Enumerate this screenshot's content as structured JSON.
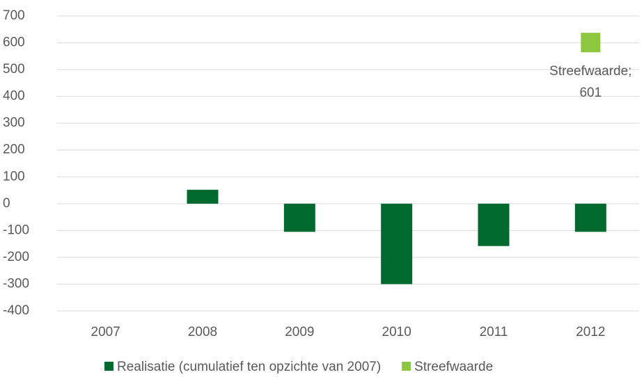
{
  "chart_data": {
    "type": "bar",
    "categories": [
      "2007",
      "2008",
      "2009",
      "2010",
      "2011",
      "2012"
    ],
    "series": [
      {
        "name": "Realisatie (cumulatief ten opzichte van 2007)",
        "color": "#006a2e",
        "values": [
          null,
          52,
          -105,
          -300,
          -158,
          -105
        ]
      },
      {
        "name": "Streefwaarde",
        "color": "#8dc63f",
        "marker": "square",
        "values": [
          null,
          null,
          null,
          null,
          null,
          601
        ],
        "value_labels": [
          null,
          null,
          null,
          null,
          null,
          "Streefwaarde; 601"
        ]
      }
    ],
    "ylim": [
      -400,
      700
    ],
    "yticks": [
      -400,
      -300,
      -200,
      -100,
      0,
      100,
      200,
      300,
      400,
      500,
      600,
      700
    ],
    "grid": true,
    "legend": "bottom"
  }
}
